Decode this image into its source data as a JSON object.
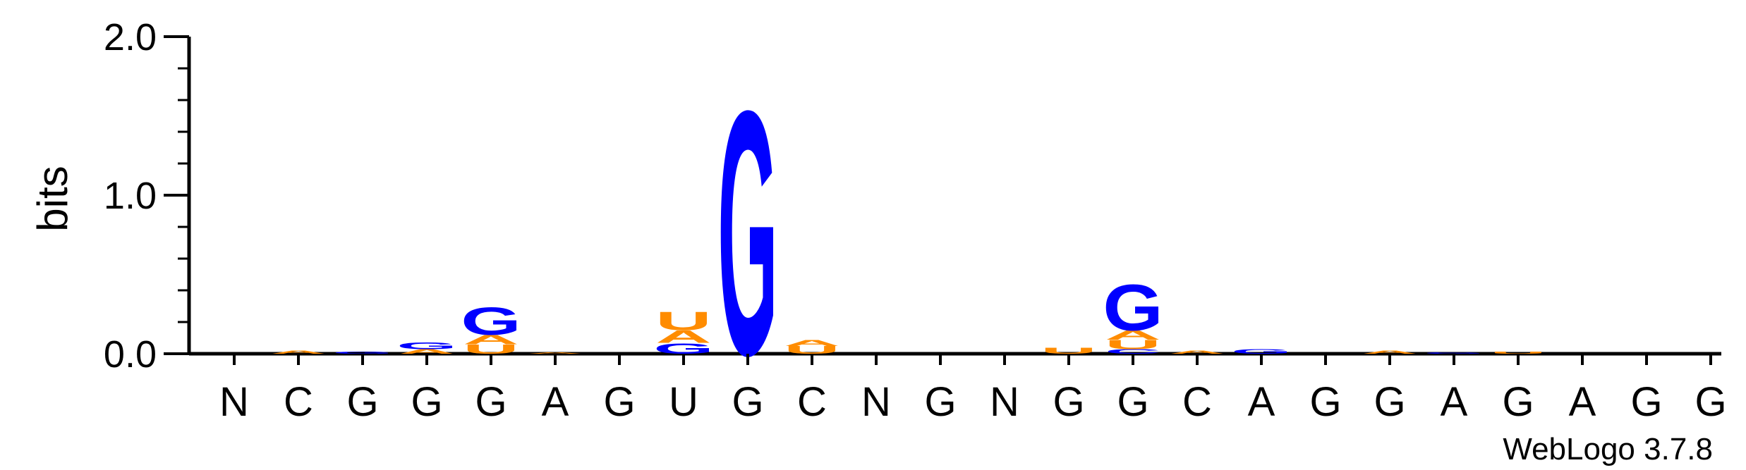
{
  "chart_data": {
    "type": "sequence_logo",
    "ylabel": "bits",
    "ylim": [
      0,
      2.0
    ],
    "yticks": [
      "0.0",
      "1.0",
      "2.0"
    ],
    "positions": [
      "N",
      "C",
      "G",
      "G",
      "G",
      "A",
      "G",
      "U",
      "G",
      "C",
      "N",
      "G",
      "N",
      "G",
      "G",
      "C",
      "A",
      "G",
      "G",
      "A",
      "G",
      "A",
      "G",
      "G"
    ],
    "colors": {
      "G": "#0000ff",
      "A": "#ff8c00",
      "U": "#ff8c00",
      "C": "#0000ff"
    },
    "stacks": [
      [],
      [
        {
          "letter": "A",
          "bits": 0.02
        }
      ],
      [
        {
          "letter": "G",
          "bits": 0.015
        }
      ],
      [
        {
          "letter": "A",
          "bits": 0.03
        },
        {
          "letter": "G",
          "bits": 0.045
        }
      ],
      [
        {
          "letter": "U",
          "bits": 0.06
        },
        {
          "letter": "A",
          "bits": 0.06
        },
        {
          "letter": "G",
          "bits": 0.18
        }
      ],
      [
        {
          "letter": "A",
          "bits": 0.01
        }
      ],
      [],
      [
        {
          "letter": "G",
          "bits": 0.07
        },
        {
          "letter": "A",
          "bits": 0.08
        },
        {
          "letter": "U",
          "bits": 0.12
        }
      ],
      [
        {
          "letter": "G",
          "bits": 1.6
        }
      ],
      [
        {
          "letter": "U",
          "bits": 0.05
        },
        {
          "letter": "A",
          "bits": 0.04
        }
      ],
      [],
      [],
      [],
      [
        {
          "letter": "U",
          "bits": 0.04
        }
      ],
      [
        {
          "letter": "C",
          "bits": 0.03
        },
        {
          "letter": "U",
          "bits": 0.06
        },
        {
          "letter": "A",
          "bits": 0.06
        },
        {
          "letter": "G",
          "bits": 0.3
        }
      ],
      [
        {
          "letter": "A",
          "bits": 0.02
        }
      ],
      [
        {
          "letter": "G",
          "bits": 0.03
        }
      ],
      [],
      [
        {
          "letter": "A",
          "bits": 0.02
        }
      ],
      [
        {
          "letter": "G",
          "bits": 0.01
        }
      ],
      [
        {
          "letter": "U",
          "bits": 0.015
        }
      ],
      [],
      [],
      []
    ]
  },
  "credit": "WebLogo 3.7.8"
}
